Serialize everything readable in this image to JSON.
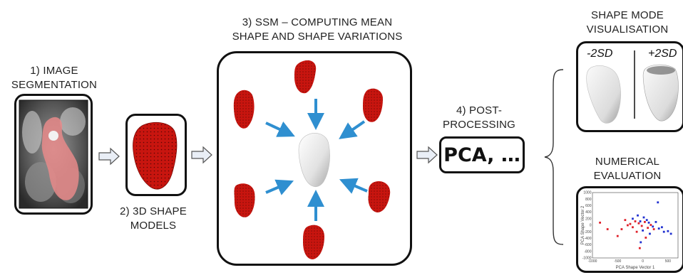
{
  "steps": {
    "step1": {
      "line1": "1) IMAGE",
      "line2": "SEGMENTATION"
    },
    "step2": {
      "line1": "2) 3D SHAPE",
      "line2": "MODELS"
    },
    "step3": {
      "line1": "3) SSM – COMPUTING MEAN",
      "line2": "SHAPE AND SHAPE VARIATIONS"
    },
    "step4": {
      "line1": "4) POST-",
      "line2": "PROCESSING",
      "box_text": "PCA, …"
    }
  },
  "outputs": {
    "shape_mode": {
      "line1": "SHAPE MODE",
      "line2": "VISUALISATION",
      "minus_label": "-2SD",
      "plus_label": "+2SD"
    },
    "numerical": {
      "line1": "NUMERICAL",
      "line2": "EVALUATION"
    }
  },
  "colors": {
    "shape_red": "#c8150f",
    "mean_shape": "#e6e6e6",
    "arrow_blue": "#2f8fd0",
    "series_red": "#e0202a",
    "series_blue": "#2030d0"
  },
  "scatter_plot": {
    "xlabel": "PCA Shape Vector 1",
    "ylabel": "PCA Shape Vector 2",
    "xticks": [
      "-1000",
      "-500",
      "0",
      "500"
    ],
    "yticks": [
      "1000",
      "800",
      "600",
      "400",
      "200",
      "0",
      "-200",
      "-400",
      "-600",
      "-800",
      "-1000"
    ],
    "xlim": [
      -1000,
      700
    ],
    "ylim": [
      -1000,
      1000
    ],
    "series": [
      {
        "color": "red",
        "points": [
          [
            -850,
            80
          ],
          [
            -700,
            -120
          ],
          [
            -500,
            -330
          ],
          [
            -420,
            -120
          ],
          [
            -300,
            0
          ],
          [
            -250,
            40
          ],
          [
            -200,
            -60
          ],
          [
            -150,
            120
          ],
          [
            -80,
            60
          ],
          [
            -20,
            -20
          ],
          [
            40,
            100
          ],
          [
            100,
            -80
          ],
          [
            160,
            10
          ],
          [
            220,
            -120
          ],
          [
            -350,
            160
          ],
          [
            -120,
            -200
          ],
          [
            60,
            -380
          ],
          [
            -60,
            -700
          ]
        ]
      },
      {
        "color": "blue",
        "points": [
          [
            -200,
            200
          ],
          [
            -100,
            300
          ],
          [
            -50,
            120
          ],
          [
            20,
            240
          ],
          [
            80,
            160
          ],
          [
            120,
            80
          ],
          [
            200,
            -40
          ],
          [
            260,
            100
          ],
          [
            320,
            -100
          ],
          [
            380,
            -60
          ],
          [
            420,
            -200
          ],
          [
            500,
            -180
          ],
          [
            560,
            -260
          ],
          [
            300,
            700
          ],
          [
            140,
            -260
          ],
          [
            0,
            -160
          ],
          [
            -40,
            -520
          ]
        ]
      }
    ]
  }
}
